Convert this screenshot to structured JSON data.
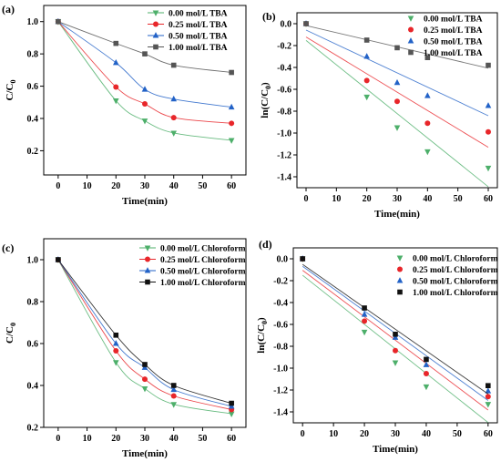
{
  "chart_data": [
    {
      "panel_label": "(a)",
      "type": "line",
      "xlabel": "Time(min)",
      "ylabel_main": "C/C",
      "ylabel_sub": "0",
      "ylabel_prefix": "",
      "ylabel_suffix": "",
      "xlim": [
        -5,
        65
      ],
      "ylim": [
        0.05,
        1.1
      ],
      "xticks": [
        0,
        10,
        20,
        30,
        40,
        50,
        60
      ],
      "yticks": [
        0.2,
        0.4,
        0.6,
        0.8,
        1.0
      ],
      "ytick_labels": [
        "0.2",
        "0.4",
        "0.6",
        "0.8",
        "1.0"
      ],
      "line_style": "smooth",
      "legend_position": "top-right",
      "series": [
        {
          "name": "0.00 mol/L TBA",
          "color": "#4daf6a",
          "marker": "triangle-down",
          "x": [
            0,
            20,
            30,
            40,
            60
          ],
          "y": [
            1.0,
            0.51,
            0.385,
            0.31,
            0.265
          ]
        },
        {
          "name": "0.25 mol/L TBA",
          "color": "#e8262a",
          "marker": "circle",
          "x": [
            0,
            20,
            30,
            40,
            60
          ],
          "y": [
            1.0,
            0.595,
            0.49,
            0.405,
            0.37
          ]
        },
        {
          "name": "0.50 mol/L TBA",
          "color": "#2262c7",
          "marker": "triangle-up",
          "x": [
            0,
            20,
            30,
            40,
            60
          ],
          "y": [
            1.0,
            0.745,
            0.58,
            0.52,
            0.47
          ]
        },
        {
          "name": "1.00 mol/L TBA",
          "color": "#555555",
          "marker": "square",
          "x": [
            0,
            20,
            30,
            40,
            60
          ],
          "y": [
            1.0,
            0.865,
            0.8,
            0.73,
            0.685
          ]
        }
      ]
    },
    {
      "panel_label": "(b)",
      "type": "scatter",
      "xlabel": "Time(min)",
      "ylabel_main": "ln(C/C",
      "ylabel_sub": "0",
      "ylabel_prefix": "",
      "ylabel_suffix": ")",
      "xlim": [
        -3,
        63
      ],
      "ylim": [
        -1.5,
        0.1
      ],
      "xticks": [
        0,
        10,
        20,
        30,
        40,
        50,
        60
      ],
      "yticks": [
        0.0,
        -0.2,
        -0.4,
        -0.6,
        -0.8,
        -1.0,
        -1.2,
        -1.4
      ],
      "ytick_labels": [
        "0.0",
        "-0.2",
        "-0.4",
        "-0.6",
        "-0.8",
        "-1.0",
        "-1.2",
        "-1.4"
      ],
      "line_style": "linear-fit",
      "legend_position": "top-right",
      "series": [
        {
          "name": "0.00 mol/L TBA",
          "color": "#4daf6a",
          "marker": "triangle-down",
          "x": [
            0,
            20,
            30,
            40,
            60
          ],
          "y": [
            0.0,
            -0.67,
            -0.95,
            -1.17,
            -1.32
          ]
        },
        {
          "name": "0.25 mol/L TBA",
          "color": "#e8262a",
          "marker": "circle",
          "x": [
            0,
            20,
            30,
            40,
            60
          ],
          "y": [
            0.0,
            -0.52,
            -0.71,
            -0.91,
            -0.99
          ]
        },
        {
          "name": "0.50 mol/L TBA",
          "color": "#2262c7",
          "marker": "triangle-up",
          "x": [
            0,
            20,
            30,
            40,
            60
          ],
          "y": [
            0.0,
            -0.3,
            -0.54,
            -0.66,
            -0.75
          ]
        },
        {
          "name": "1.00 mol/L TBA",
          "color": "#555555",
          "marker": "square",
          "x": [
            0,
            20,
            30,
            40,
            60
          ],
          "y": [
            0.0,
            -0.15,
            -0.22,
            -0.31,
            -0.38
          ]
        }
      ]
    },
    {
      "panel_label": "(c)",
      "type": "line",
      "xlabel": "Time(min)",
      "ylabel_main": "C/C",
      "ylabel_sub": "0",
      "ylabel_prefix": "",
      "ylabel_suffix": "",
      "xlim": [
        -5,
        65
      ],
      "ylim": [
        0.2,
        1.1
      ],
      "xticks": [
        0,
        10,
        20,
        30,
        40,
        50,
        60
      ],
      "yticks": [
        0.2,
        0.4,
        0.6,
        0.8,
        1.0
      ],
      "ytick_labels": [
        "0.2",
        "0.4",
        "0.6",
        "0.8",
        "1.0"
      ],
      "line_style": "smooth",
      "legend_position": "top-right",
      "series": [
        {
          "name": "0.00 mol/L Chloroform",
          "color": "#4daf6a",
          "marker": "triangle-down",
          "x": [
            0,
            20,
            30,
            40,
            60
          ],
          "y": [
            1.0,
            0.51,
            0.385,
            0.31,
            0.265
          ]
        },
        {
          "name": "0.25 mol/L Chloroform",
          "color": "#e8262a",
          "marker": "circle",
          "x": [
            0,
            20,
            30,
            40,
            60
          ],
          "y": [
            1.0,
            0.565,
            0.43,
            0.35,
            0.285
          ]
        },
        {
          "name": "0.50 mol/L Chloroform",
          "color": "#2262c7",
          "marker": "triangle-up",
          "x": [
            0,
            20,
            30,
            40,
            60
          ],
          "y": [
            1.0,
            0.6,
            0.485,
            0.38,
            0.3
          ]
        },
        {
          "name": "1.00 mol/L Chloroform",
          "color": "#111111",
          "marker": "square",
          "x": [
            0,
            20,
            30,
            40,
            60
          ],
          "y": [
            1.0,
            0.64,
            0.5,
            0.4,
            0.315
          ]
        }
      ]
    },
    {
      "panel_label": "(d)",
      "type": "scatter",
      "xlabel": "Time(min)",
      "ylabel_main": "ln(C/C",
      "ylabel_sub": "0",
      "ylabel_prefix": "",
      "ylabel_suffix": ")",
      "xlim": [
        -3,
        63
      ],
      "ylim": [
        -1.5,
        0.1
      ],
      "xticks": [
        0,
        10,
        20,
        30,
        40,
        50,
        60
      ],
      "yticks": [
        0.0,
        -0.2,
        -0.4,
        -0.6,
        -0.8,
        -1.0,
        -1.2,
        -1.4
      ],
      "ytick_labels": [
        "0.0",
        "-0.2",
        "-0.4",
        "-0.6",
        "-0.8",
        "-1.0",
        "-1.2",
        "-1.4"
      ],
      "line_style": "linear-fit",
      "legend_position": "top-right",
      "series": [
        {
          "name": "0.00 mol/L Chloroform",
          "color": "#4daf6a",
          "marker": "triangle-down",
          "x": [
            0,
            20,
            30,
            40,
            60
          ],
          "y": [
            0.0,
            -0.67,
            -0.95,
            -1.17,
            -1.33
          ]
        },
        {
          "name": "0.25 mol/L Chloroform",
          "color": "#e8262a",
          "marker": "circle",
          "x": [
            0,
            20,
            30,
            40,
            60
          ],
          "y": [
            0.0,
            -0.57,
            -0.84,
            -1.05,
            -1.26
          ]
        },
        {
          "name": "0.50 mol/L Chloroform",
          "color": "#2262c7",
          "marker": "triangle-up",
          "x": [
            0,
            20,
            30,
            40,
            60
          ],
          "y": [
            0.0,
            -0.51,
            -0.72,
            -0.97,
            -1.21
          ]
        },
        {
          "name": "1.00 mol/L Chloroform",
          "color": "#111111",
          "marker": "square",
          "x": [
            0,
            20,
            30,
            40,
            60
          ],
          "y": [
            0.0,
            -0.45,
            -0.69,
            -0.92,
            -1.16
          ]
        }
      ]
    }
  ]
}
